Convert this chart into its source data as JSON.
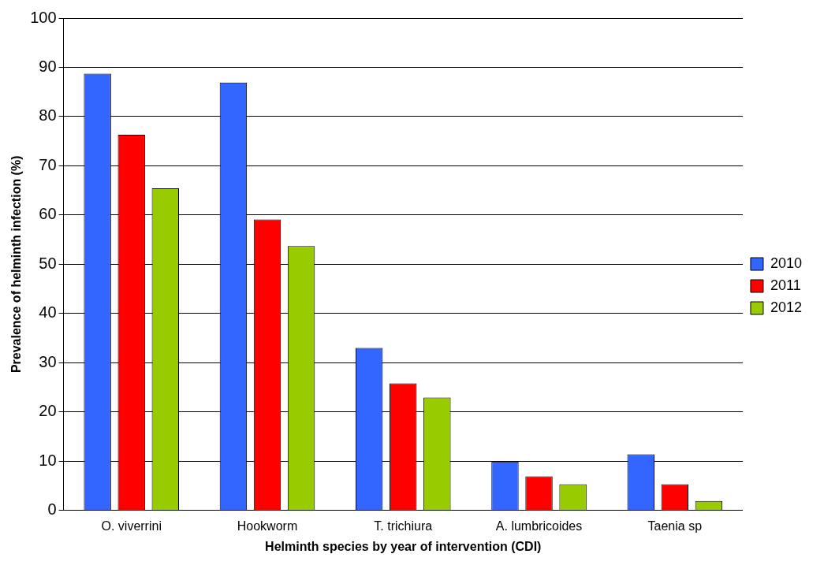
{
  "chart_data": {
    "type": "bar",
    "xlabel": "Helminth species by year of intervention (CDI)",
    "ylabel": "Prevalence of helminth infection (%)",
    "categories": [
      "O. viverrini",
      "Hookworm",
      "T. trichiura",
      "A. lumbricoides",
      "Taenia sp"
    ],
    "series": [
      {
        "name": "2010",
        "color": "#3366ff",
        "values": [
          88.7,
          86.9,
          33.0,
          9.9,
          11.4
        ]
      },
      {
        "name": "2011",
        "color": "#ff0000",
        "values": [
          76.3,
          59.1,
          25.8,
          6.9,
          5.3
        ]
      },
      {
        "name": "2012",
        "color": "#99cc00",
        "values": [
          65.4,
          53.7,
          22.9,
          5.3,
          1.9
        ]
      }
    ],
    "ylim": [
      0,
      100
    ],
    "yticks": [
      0,
      10,
      20,
      30,
      40,
      50,
      60,
      70,
      80,
      90,
      100
    ],
    "grid": "y",
    "legend": "right"
  }
}
